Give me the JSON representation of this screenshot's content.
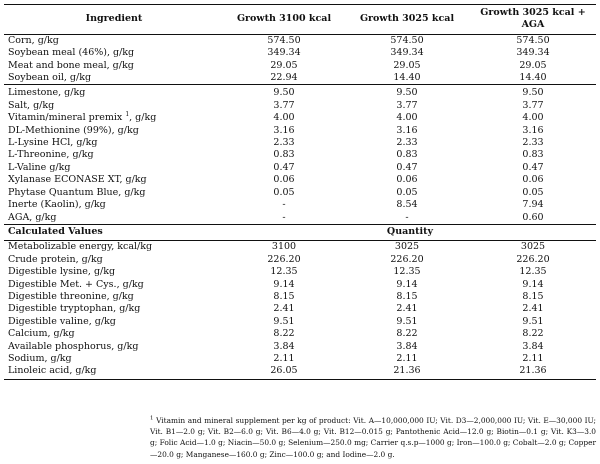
{
  "headers": [
    "Ingredient",
    "Growth 3100 kcal",
    "Growth 3025 kcal",
    "Growth 3025 kcal + AGA"
  ],
  "group1": [
    [
      "Corn, g/kg",
      "574.50",
      "574.50",
      "574.50"
    ],
    [
      "Soybean meal (46%), g/kg",
      "349.34",
      "349.34",
      "349.34"
    ],
    [
      "Meat and bone meal, g/kg",
      "29.05",
      "29.05",
      "29.05"
    ],
    [
      "Soybean oil, g/kg",
      "22.94",
      "14.40",
      "14.40"
    ]
  ],
  "group2": [
    [
      "Limestone, g/kg",
      "9.50",
      "9.50",
      "9.50"
    ],
    [
      "Salt, g/kg",
      "3.77",
      "3.77",
      "3.77"
    ],
    [
      "Vitamin/mineral premix",
      "4.00",
      "4.00",
      "4.00"
    ],
    [
      "DL-Methionine (99%), g/kg",
      "3.16",
      "3.16",
      "3.16"
    ],
    [
      "L-Lysine HCl, g/kg",
      "2.33",
      "2.33",
      "2.33"
    ],
    [
      "L-Threonine, g/kg",
      "0.83",
      "0.83",
      "0.83"
    ],
    [
      "L-Valine g/kg",
      "0.47",
      "0.47",
      "0.47"
    ],
    [
      "Xylanase ECONASE XT, g/kg",
      "0.06",
      "0.06",
      "0.06"
    ],
    [
      "Phytase Quantum Blue, g/kg",
      "0.05",
      "0.05",
      "0.05"
    ],
    [
      "Inerte (Kaolin), g/kg",
      "-",
      "8.54",
      "7.94"
    ],
    [
      "AGA, g/kg",
      "-",
      "-",
      "0.60"
    ]
  ],
  "premix_note_mark": "1",
  "premix_unit": ", g/kg",
  "calc_header": {
    "label": "Calculated Values",
    "quantity": "Quantity"
  },
  "group3": [
    [
      "Metabolizable energy, kcal/kg",
      "3100",
      "3025",
      "3025"
    ],
    [
      "Crude protein, g/kg",
      "226.20",
      "226.20",
      "226.20"
    ],
    [
      "Digestible lysine, g/kg",
      "12.35",
      "12.35",
      "12.35"
    ],
    [
      "Digestible Met. + Cys., g/kg",
      "9.14",
      "9.14",
      "9.14"
    ],
    [
      "Digestible threonine, g/kg",
      "8.15",
      "8.15",
      "8.15"
    ],
    [
      "Digestible tryptophan, g/kg",
      "2.41",
      "2.41",
      "2.41"
    ],
    [
      "Digestible valine, g/kg",
      "9.51",
      "9.51",
      "9.51"
    ],
    [
      "Calcium, g/kg",
      "8.22",
      "8.22",
      "8.22"
    ],
    [
      "Available phosphorus, g/kg",
      "3.84",
      "3.84",
      "3.84"
    ],
    [
      "Sodium, g/kg",
      "2.11",
      "2.11",
      "2.11"
    ],
    [
      "Linoleic acid, g/kg",
      "26.05",
      "21.36",
      "21.36"
    ]
  ],
  "footnote": {
    "mark": "1",
    "text": " Vitamin and mineral supplement per kg of product: Vit. A—10,000,000 IU; Vit. D3—2,000,000 IU; Vit. E—30,000 IU; Vit. B1—2.0 g; Vit. B2—6.0 g; Vit. B6—4.0 g; Vit. B12—0.015 g; Pantothenic Acid—12.0 g; Biotin—0.1 g; Vit. K3—3.0 g; Folic Acid—1.0 g; Niacin—50.0 g; Selenium—250.0 mg; Carrier q.s.p—1000 g; Iron—100.0 g; Cobalt—2.0 g; Copper—20.0 g; Manganese—160.0 g; Zinc—100.0 g; and Iodine—2.0 g."
  }
}
